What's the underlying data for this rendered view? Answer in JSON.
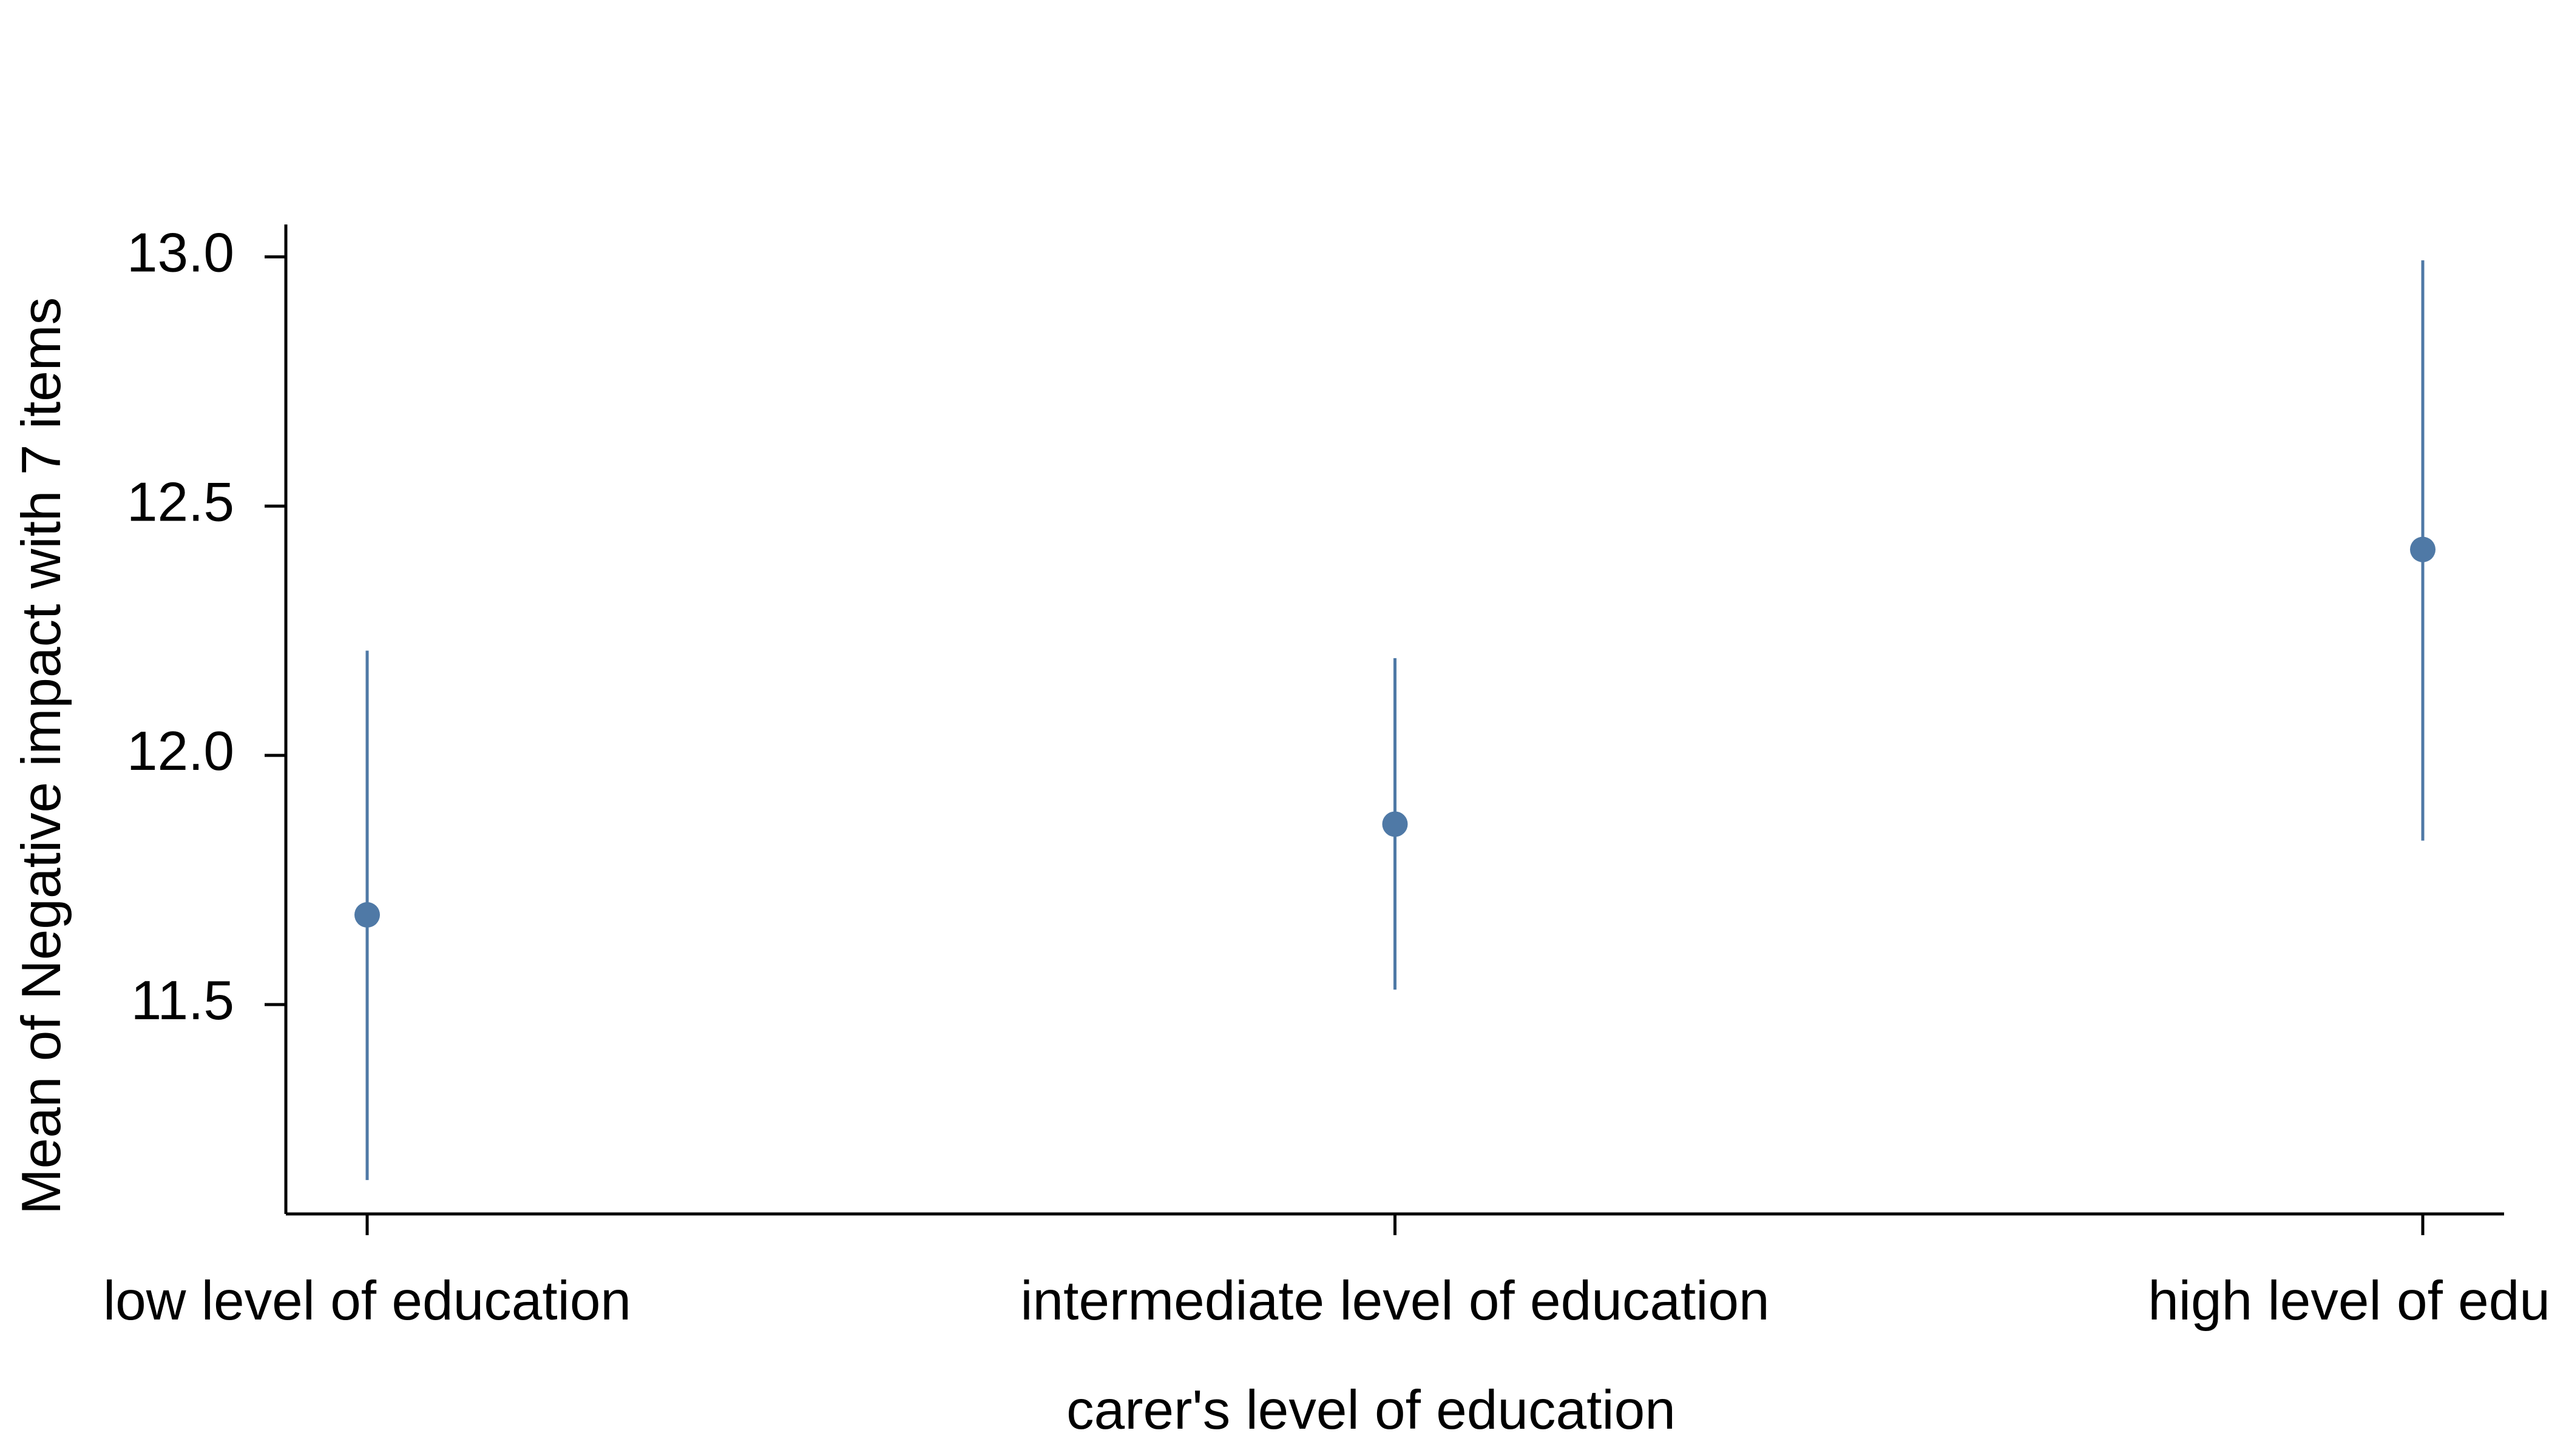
{
  "chart_data": {
    "type": "errorbar",
    "x_label": "carer's level of education",
    "y_label": "Mean of Negative impact with 7 items",
    "categories": [
      "low level of education",
      "intermediate level of education",
      "high level of education"
    ],
    "series": [
      {
        "color": "#4f79a6",
        "values": [
          11.68,
          11.862,
          12.413
        ],
        "lower": [
          11.148,
          11.53,
          11.829
        ],
        "upper": [
          12.21,
          12.195,
          12.993
        ]
      }
    ],
    "ylim": [
      11.08,
      13.065
    ],
    "yticks": [
      {
        "value": 11.5,
        "label": "11.5"
      },
      {
        "value": 12,
        "label": "12.0"
      },
      {
        "value": 12.5,
        "label": "12.5"
      },
      {
        "value": 13,
        "label": "13.0"
      }
    ],
    "grid": false
  }
}
